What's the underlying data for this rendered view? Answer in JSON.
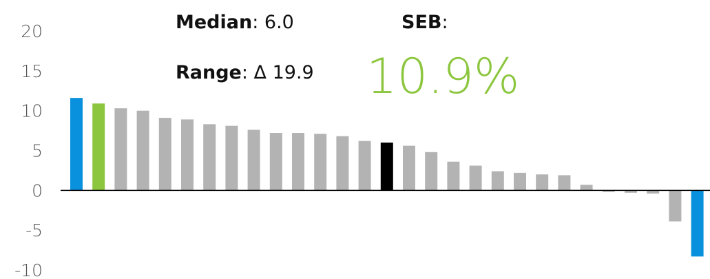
{
  "chart_data": {
    "type": "bar",
    "values": [
      11.6,
      10.9,
      10.3,
      10.0,
      9.1,
      8.9,
      8.3,
      8.1,
      7.6,
      7.2,
      7.2,
      7.1,
      6.8,
      6.2,
      6.0,
      5.6,
      4.8,
      3.6,
      3.1,
      2.4,
      2.2,
      2.0,
      1.9,
      0.7,
      -0.2,
      -0.3,
      -0.4,
      -3.9,
      -8.3
    ],
    "colors": [
      "#0a91dd",
      "#8cc63e",
      "#b3b3b3",
      "#b3b3b3",
      "#b3b3b3",
      "#b3b3b3",
      "#b3b3b3",
      "#b3b3b3",
      "#b3b3b3",
      "#b3b3b3",
      "#b3b3b3",
      "#b3b3b3",
      "#b3b3b3",
      "#b3b3b3",
      "#000000",
      "#b3b3b3",
      "#b3b3b3",
      "#b3b3b3",
      "#b3b3b3",
      "#b3b3b3",
      "#b3b3b3",
      "#b3b3b3",
      "#b3b3b3",
      "#b3b3b3",
      "#b3b3b3",
      "#b3b3b3",
      "#b3b3b3",
      "#b3b3b3",
      "#0a91dd"
    ],
    "ylim": [
      -10,
      20
    ],
    "yticks": [
      -10,
      -5,
      0,
      5,
      10,
      15,
      20
    ],
    "grid": false,
    "annotations": {
      "median": {
        "label": "Median",
        "text": ": 6.0"
      },
      "range": {
        "label": "Range",
        "text": ": Δ 19.9"
      },
      "seb": {
        "label": "SEB",
        "text": ":",
        "value": "10.9%",
        "color": "#8cc63e"
      }
    }
  }
}
